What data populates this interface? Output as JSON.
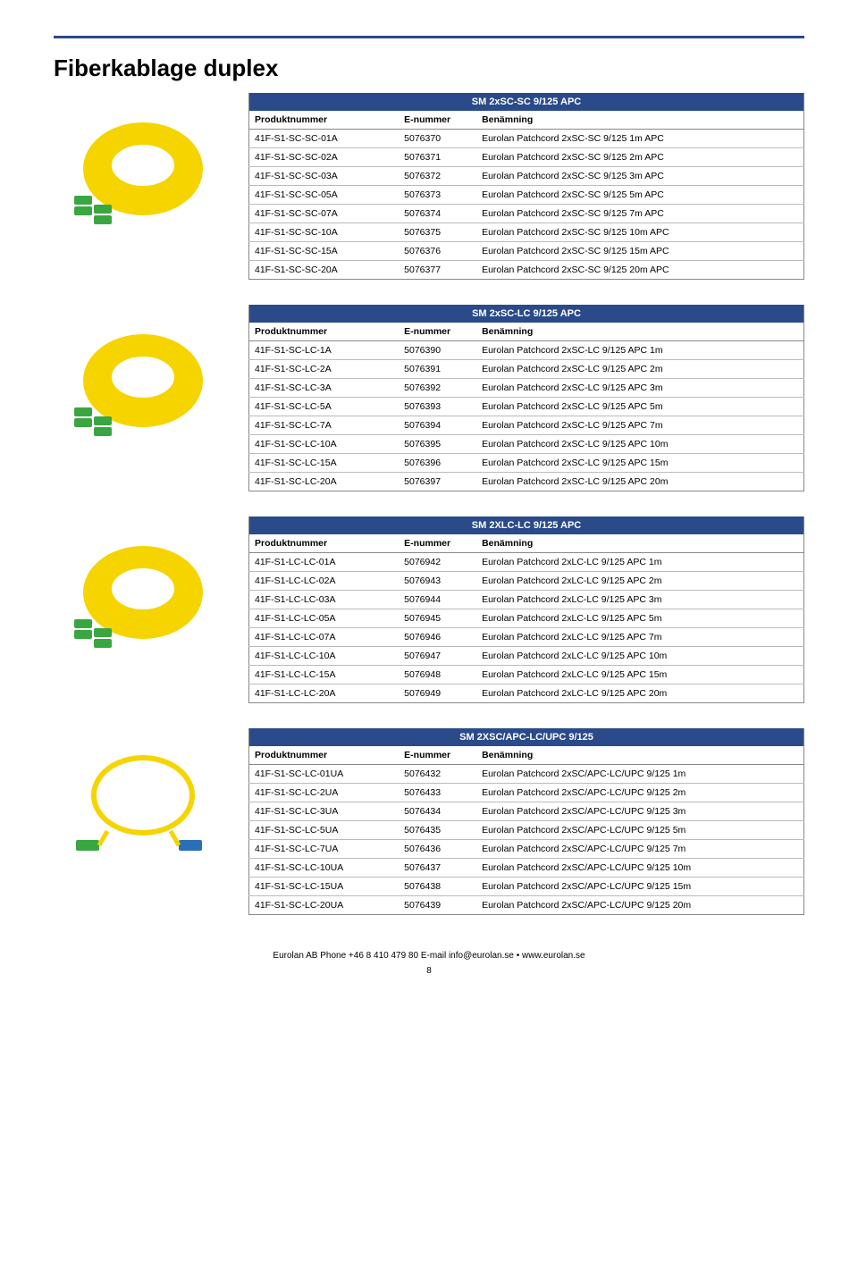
{
  "page": {
    "title": "Fiberkablage duplex",
    "accent_color": "#2a4a8a",
    "cable_color": "#f5d400",
    "connector_green": "#3aa641",
    "connector_blue": "#2a6fb8",
    "footer": "Eurolan AB  Phone +46 8 410 479 80  E-mail info@eurolan.se • www.eurolan.se",
    "page_number": "8"
  },
  "column_headers": {
    "prod": "Produktnummer",
    "enum": "E-nummer",
    "desc": "Benämning"
  },
  "tables": [
    {
      "title": "SM 2xSC-SC 9/125 APC",
      "rows": [
        {
          "prod": "41F-S1-SC-SC-01A",
          "enum": "5076370",
          "desc": "Eurolan Patchcord 2xSC-SC 9/125 1m APC"
        },
        {
          "prod": "41F-S1-SC-SC-02A",
          "enum": "5076371",
          "desc": "Eurolan Patchcord 2xSC-SC 9/125 2m APC"
        },
        {
          "prod": "41F-S1-SC-SC-03A",
          "enum": "5076372",
          "desc": "Eurolan Patchcord 2xSC-SC 9/125 3m APC"
        },
        {
          "prod": "41F-S1-SC-SC-05A",
          "enum": "5076373",
          "desc": "Eurolan Patchcord 2xSC-SC 9/125 5m APC"
        },
        {
          "prod": "41F-S1-SC-SC-07A",
          "enum": "5076374",
          "desc": "Eurolan Patchcord 2xSC-SC 9/125 7m APC"
        },
        {
          "prod": "41F-S1-SC-SC-10A",
          "enum": "5076375",
          "desc": "Eurolan Patchcord 2xSC-SC 9/125 10m APC"
        },
        {
          "prod": "41F-S1-SC-SC-15A",
          "enum": "5076376",
          "desc": "Eurolan Patchcord 2xSC-SC 9/125 15m APC"
        },
        {
          "prod": "41F-S1-SC-SC-20A",
          "enum": "5076377",
          "desc": "Eurolan Patchcord 2xSC-SC 9/125 20m APC"
        }
      ]
    },
    {
      "title": "SM 2xSC-LC 9/125 APC",
      "rows": [
        {
          "prod": "41F-S1-SC-LC-1A",
          "enum": "5076390",
          "desc": "Eurolan Patchcord 2xSC-LC 9/125 APC 1m"
        },
        {
          "prod": "41F-S1-SC-LC-2A",
          "enum": "5076391",
          "desc": "Eurolan Patchcord 2xSC-LC 9/125 APC 2m"
        },
        {
          "prod": "41F-S1-SC-LC-3A",
          "enum": "5076392",
          "desc": "Eurolan Patchcord 2xSC-LC 9/125 APC 3m"
        },
        {
          "prod": "41F-S1-SC-LC-5A",
          "enum": "5076393",
          "desc": "Eurolan Patchcord 2xSC-LC 9/125 APC 5m"
        },
        {
          "prod": "41F-S1-SC-LC-7A",
          "enum": "5076394",
          "desc": "Eurolan Patchcord 2xSC-LC 9/125 APC 7m"
        },
        {
          "prod": "41F-S1-SC-LC-10A",
          "enum": "5076395",
          "desc": "Eurolan Patchcord 2xSC-LC 9/125 APC 10m"
        },
        {
          "prod": "41F-S1-SC-LC-15A",
          "enum": "5076396",
          "desc": "Eurolan Patchcord 2xSC-LC 9/125 APC 15m"
        },
        {
          "prod": "41F-S1-SC-LC-20A",
          "enum": "5076397",
          "desc": "Eurolan Patchcord 2xSC-LC 9/125 APC 20m"
        }
      ]
    },
    {
      "title": "SM 2XLC-LC 9/125 APC",
      "rows": [
        {
          "prod": "41F-S1-LC-LC-01A",
          "enum": "5076942",
          "desc": "Eurolan Patchcord 2xLC-LC 9/125 APC 1m"
        },
        {
          "prod": "41F-S1-LC-LC-02A",
          "enum": "5076943",
          "desc": "Eurolan Patchcord 2xLC-LC 9/125 APC 2m"
        },
        {
          "prod": "41F-S1-LC-LC-03A",
          "enum": "5076944",
          "desc": "Eurolan Patchcord 2xLC-LC 9/125 APC 3m"
        },
        {
          "prod": "41F-S1-LC-LC-05A",
          "enum": "5076945",
          "desc": "Eurolan Patchcord 2xLC-LC 9/125 APC 5m"
        },
        {
          "prod": "41F-S1-LC-LC-07A",
          "enum": "5076946",
          "desc": "Eurolan Patchcord 2xLC-LC 9/125 APC 7m"
        },
        {
          "prod": "41F-S1-LC-LC-10A",
          "enum": "5076947",
          "desc": "Eurolan Patchcord 2xLC-LC 9/125 APC 10m"
        },
        {
          "prod": "41F-S1-LC-LC-15A",
          "enum": "5076948",
          "desc": "Eurolan Patchcord 2xLC-LC 9/125 APC 15m"
        },
        {
          "prod": "41F-S1-LC-LC-20A",
          "enum": "5076949",
          "desc": "Eurolan Patchcord 2xLC-LC 9/125 APC 20m"
        }
      ]
    },
    {
      "title": "SM 2XSC/APC-LC/UPC 9/125",
      "rows": [
        {
          "prod": "41F-S1-SC-LC-01UA",
          "enum": "5076432",
          "desc": "Eurolan Patchcord 2xSC/APC-LC/UPC 9/125 1m"
        },
        {
          "prod": "41F-S1-SC-LC-2UA",
          "enum": "5076433",
          "desc": "Eurolan Patchcord 2xSC/APC-LC/UPC 9/125 2m"
        },
        {
          "prod": "41F-S1-SC-LC-3UA",
          "enum": "5076434",
          "desc": "Eurolan Patchcord 2xSC/APC-LC/UPC 9/125 3m"
        },
        {
          "prod": "41F-S1-SC-LC-5UA",
          "enum": "5076435",
          "desc": "Eurolan Patchcord 2xSC/APC-LC/UPC 9/125 5m"
        },
        {
          "prod": "41F-S1-SC-LC-7UA",
          "enum": "5076436",
          "desc": "Eurolan Patchcord 2xSC/APC-LC/UPC 9/125 7m"
        },
        {
          "prod": "41F-S1-SC-LC-10UA",
          "enum": "5076437",
          "desc": "Eurolan Patchcord 2xSC/APC-LC/UPC 9/125 10m"
        },
        {
          "prod": "41F-S1-SC-LC-15UA",
          "enum": "5076438",
          "desc": "Eurolan Patchcord 2xSC/APC-LC/UPC 9/125 15m"
        },
        {
          "prod": "41F-S1-SC-LC-20UA",
          "enum": "5076439",
          "desc": "Eurolan Patchcord 2xSC/APC-LC/UPC 9/125 20m"
        }
      ]
    }
  ]
}
